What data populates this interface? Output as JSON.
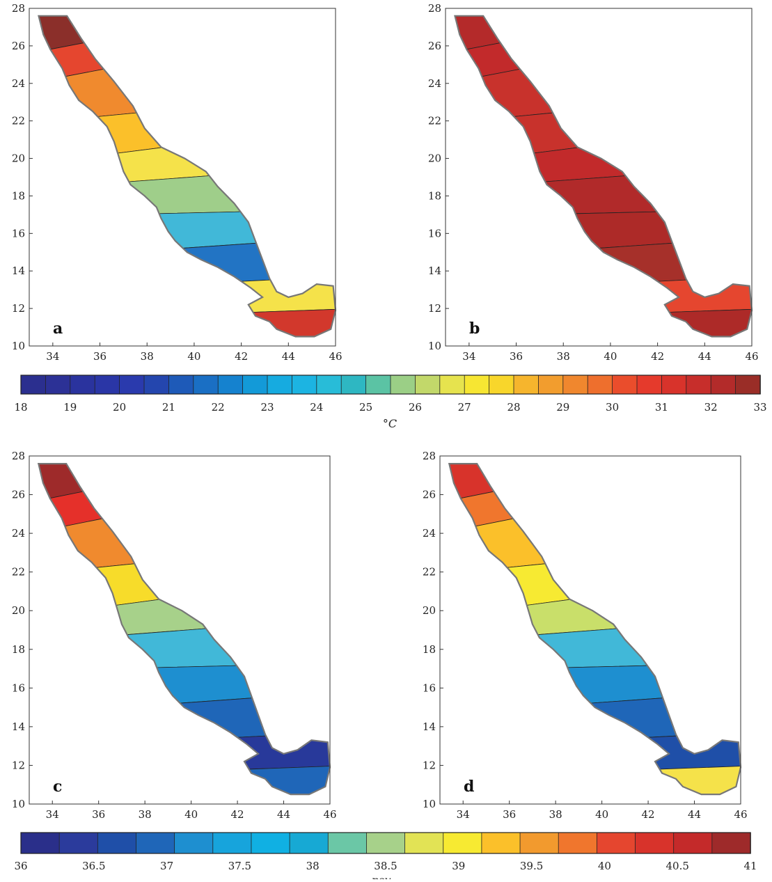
{
  "figure": {
    "x_ticks": [
      "34",
      "36",
      "38",
      "40",
      "42",
      "44",
      "46"
    ],
    "y_ticks": [
      "10",
      "12",
      "14",
      "16",
      "18",
      "20",
      "22",
      "24",
      "26",
      "28"
    ],
    "xlim": [
      33,
      46
    ],
    "ylim": [
      10,
      28
    ]
  },
  "panels": [
    {
      "id": "a",
      "label": "a",
      "scale": "temperature",
      "bands": [
        "#8b2f2a",
        "#e5462f",
        "#f08a2e",
        "#fbc02a",
        "#f5e24a",
        "#9fce8a",
        "#41b8d8",
        "#2274c4",
        "#f5e24a",
        "#d2382c"
      ]
    },
    {
      "id": "b",
      "label": "b",
      "scale": "temperature",
      "bands": [
        "#b42a2a",
        "#c22a2b",
        "#c8322c",
        "#c8322c",
        "#c22a2b",
        "#b12a2a",
        "#ad2a28",
        "#a6302a",
        "#e5462f",
        "#ad2a28"
      ]
    },
    {
      "id": "c",
      "label": "c",
      "scale": "salinity",
      "bands": [
        "#9e2a2a",
        "#e5302a",
        "#f08a2e",
        "#f7dc2a",
        "#a7d18a",
        "#41b8d8",
        "#1e8fd0",
        "#1f66b8",
        "#28399a",
        "#1f66b8"
      ]
    },
    {
      "id": "d",
      "label": "d",
      "scale": "salinity",
      "bands": [
        "#d8332b",
        "#f0762d",
        "#fbc02a",
        "#f7ea32",
        "#c9df6a",
        "#41b8d8",
        "#1e8fd0",
        "#1f66b8",
        "#1f4fa8",
        "#f5e24a"
      ]
    }
  ],
  "colorbars": {
    "temperature": {
      "tick_labels": [
        "18",
        "19",
        "20",
        "21",
        "22",
        "23",
        "24",
        "25",
        "26",
        "27",
        "28",
        "29",
        "30",
        "31",
        "32",
        "33"
      ],
      "unit": "°C",
      "range": [
        18,
        33
      ],
      "colors": [
        "#2b2f8f",
        "#2c3196",
        "#2a339e",
        "#2a36a6",
        "#2a3aad",
        "#2446ae",
        "#1e5ab8",
        "#1a6fc4",
        "#1582cf",
        "#139ad8",
        "#16abe0",
        "#1cb4e2",
        "#28bcd8",
        "#2eb7c2",
        "#5bc3a4",
        "#9bcf86",
        "#c2d86a",
        "#e6e34e",
        "#f7e632",
        "#f8d62b",
        "#f6b52d",
        "#f29d2e",
        "#f0872e",
        "#ee6f2d",
        "#ea4d2c",
        "#e53a2c",
        "#d8332b",
        "#c72e2b",
        "#b32b2a",
        "#9a2d27"
      ]
    },
    "salinity": {
      "tick_labels": [
        "36",
        "36.5",
        "37",
        "37.5",
        "38",
        "38.5",
        "39",
        "39.5",
        "40",
        "40.5",
        "41"
      ],
      "unit": "psu",
      "range": [
        36,
        41
      ],
      "colors": [
        "#2a2f8a",
        "#2b3b9c",
        "#1f4fa8",
        "#1f66b8",
        "#1e8fd0",
        "#17a4dc",
        "#10b0e3",
        "#17a9d4",
        "#6bc7a6",
        "#a7d18a",
        "#e2e355",
        "#f7ea32",
        "#fbc02a",
        "#f29a2e",
        "#f0762d",
        "#e5462f",
        "#d8332b",
        "#c42a2a",
        "#9e2a2a"
      ]
    }
  }
}
